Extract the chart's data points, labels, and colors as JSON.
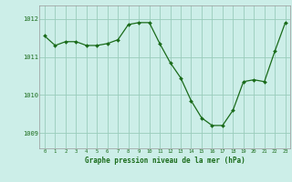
{
  "x": [
    0,
    1,
    2,
    3,
    4,
    5,
    6,
    7,
    8,
    9,
    10,
    11,
    12,
    13,
    14,
    15,
    16,
    17,
    18,
    19,
    20,
    21,
    22,
    23
  ],
  "y": [
    1011.55,
    1011.3,
    1011.4,
    1011.4,
    1011.3,
    1011.3,
    1011.35,
    1011.45,
    1011.85,
    1011.9,
    1011.9,
    1011.35,
    1010.85,
    1010.45,
    1009.85,
    1009.4,
    1009.2,
    1009.2,
    1009.6,
    1010.35,
    1010.4,
    1010.35,
    1011.15,
    1011.9
  ],
  "line_color": "#1a6b1a",
  "marker_color": "#1a6b1a",
  "bg_color": "#cceee8",
  "grid_color": "#99ccbb",
  "xlabel": "Graphe pression niveau de la mer (hPa)",
  "xlabel_color": "#1a6b1a",
  "ylabel_ticks": [
    1009,
    1010,
    1011,
    1012
  ],
  "ylim": [
    1008.6,
    1012.35
  ],
  "xlim": [
    -0.5,
    23.5
  ],
  "xtick_labels": [
    "0",
    "1",
    "2",
    "3",
    "4",
    "5",
    "6",
    "7",
    "8",
    "9",
    "10",
    "11",
    "12",
    "13",
    "14",
    "15",
    "16",
    "17",
    "18",
    "19",
    "20",
    "21",
    "22",
    "23"
  ]
}
